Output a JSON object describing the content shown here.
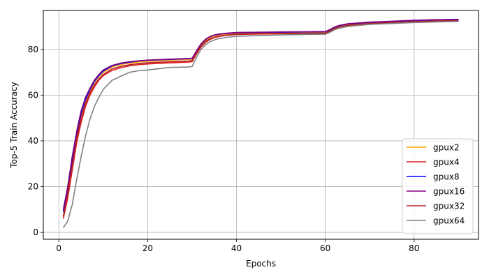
{
  "chart_data": {
    "type": "line",
    "title": "",
    "xlabel": "Epochs",
    "ylabel": "Top-5 Train Accuracy",
    "xlim": [
      -3.5,
      94.5
    ],
    "ylim": [
      -3,
      97
    ],
    "xticks": [
      0,
      20,
      40,
      60,
      80
    ],
    "yticks": [
      0,
      20,
      40,
      60,
      80
    ],
    "grid": true,
    "legend_position": "bottom-right",
    "x": [
      1,
      2,
      3,
      4,
      5,
      6,
      7,
      8,
      9,
      10,
      12,
      14,
      16,
      18,
      20,
      25,
      29,
      30,
      31,
      32,
      33,
      34,
      35,
      36,
      38,
      40,
      45,
      50,
      55,
      60,
      61,
      62,
      63,
      65,
      70,
      75,
      80,
      85,
      90
    ],
    "series": [
      {
        "name": "gpux2",
        "color": "#ffa500",
        "values": [
          9,
          19,
          31,
          43,
          51,
          57,
          62,
          65.5,
          68,
          70,
          72.3,
          73.4,
          74,
          74.5,
          74.8,
          75.3,
          75.6,
          75.8,
          79,
          82,
          84,
          85.2,
          85.9,
          86.3,
          86.8,
          87,
          87.1,
          87.2,
          87.3,
          87.4,
          88.2,
          89.3,
          90,
          90.8,
          91.5,
          91.9,
          92.3,
          92.6,
          92.7
        ]
      },
      {
        "name": "gpux4",
        "color": "#e31a1c",
        "values": [
          6,
          15,
          27,
          39,
          48,
          55,
          60,
          63.5,
          66.5,
          68.5,
          70.8,
          72,
          72.8,
          73.3,
          73.6,
          74.1,
          74.4,
          74.6,
          78,
          81,
          83,
          84.3,
          85.1,
          85.6,
          86.2,
          86.5,
          86.7,
          86.8,
          86.9,
          87,
          87.8,
          88.9,
          89.6,
          90.4,
          91.2,
          91.6,
          92,
          92.3,
          92.5
        ]
      },
      {
        "name": "gpux8",
        "color": "#0000ff",
        "values": [
          9,
          19,
          31,
          43,
          52,
          58,
          62.5,
          66,
          68.5,
          70.5,
          72.8,
          73.8,
          74.4,
          74.9,
          75.2,
          75.6,
          75.9,
          76,
          79.3,
          82.3,
          84.3,
          85.5,
          86.2,
          86.6,
          87,
          87.3,
          87.4,
          87.5,
          87.6,
          87.7,
          88.5,
          89.6,
          90.3,
          91.1,
          91.8,
          92.2,
          92.6,
          92.9,
          93
        ]
      },
      {
        "name": "gpux16",
        "color": "#800080",
        "values": [
          10,
          20,
          33,
          44,
          53,
          59,
          63,
          66.5,
          69,
          71,
          73,
          74,
          74.6,
          75,
          75.3,
          75.7,
          76,
          76.1,
          79.4,
          82.4,
          84.4,
          85.6,
          86.3,
          86.7,
          87.1,
          87.4,
          87.5,
          87.6,
          87.7,
          87.8,
          88.6,
          89.7,
          90.4,
          91.2,
          91.9,
          92.3,
          92.7,
          93,
          93.1
        ]
      },
      {
        "name": "gpux32",
        "color": "#b22222",
        "values": [
          7,
          17,
          29,
          41,
          50,
          56,
          61,
          64.5,
          67,
          69,
          71.5,
          72.6,
          73.3,
          73.8,
          74.1,
          74.6,
          74.9,
          75.1,
          78.4,
          81.4,
          83.4,
          84.6,
          85.3,
          85.8,
          86.3,
          86.6,
          86.8,
          86.9,
          87,
          87.1,
          87.9,
          89,
          89.7,
          90.5,
          91.3,
          91.7,
          92.1,
          92.4,
          92.5
        ]
      },
      {
        "name": "gpux64",
        "color": "#808080",
        "values": [
          2,
          5,
          12,
          23,
          33,
          42,
          49.5,
          55,
          59,
          62.5,
          66.5,
          68.3,
          70,
          70.7,
          71,
          72.1,
          72.3,
          72.5,
          76.5,
          80,
          82,
          83.3,
          84.1,
          84.7,
          85.3,
          85.7,
          86,
          86.3,
          86.5,
          86.6,
          87.4,
          88.5,
          89.2,
          90,
          90.9,
          91.3,
          91.7,
          92,
          92.2
        ]
      }
    ]
  }
}
